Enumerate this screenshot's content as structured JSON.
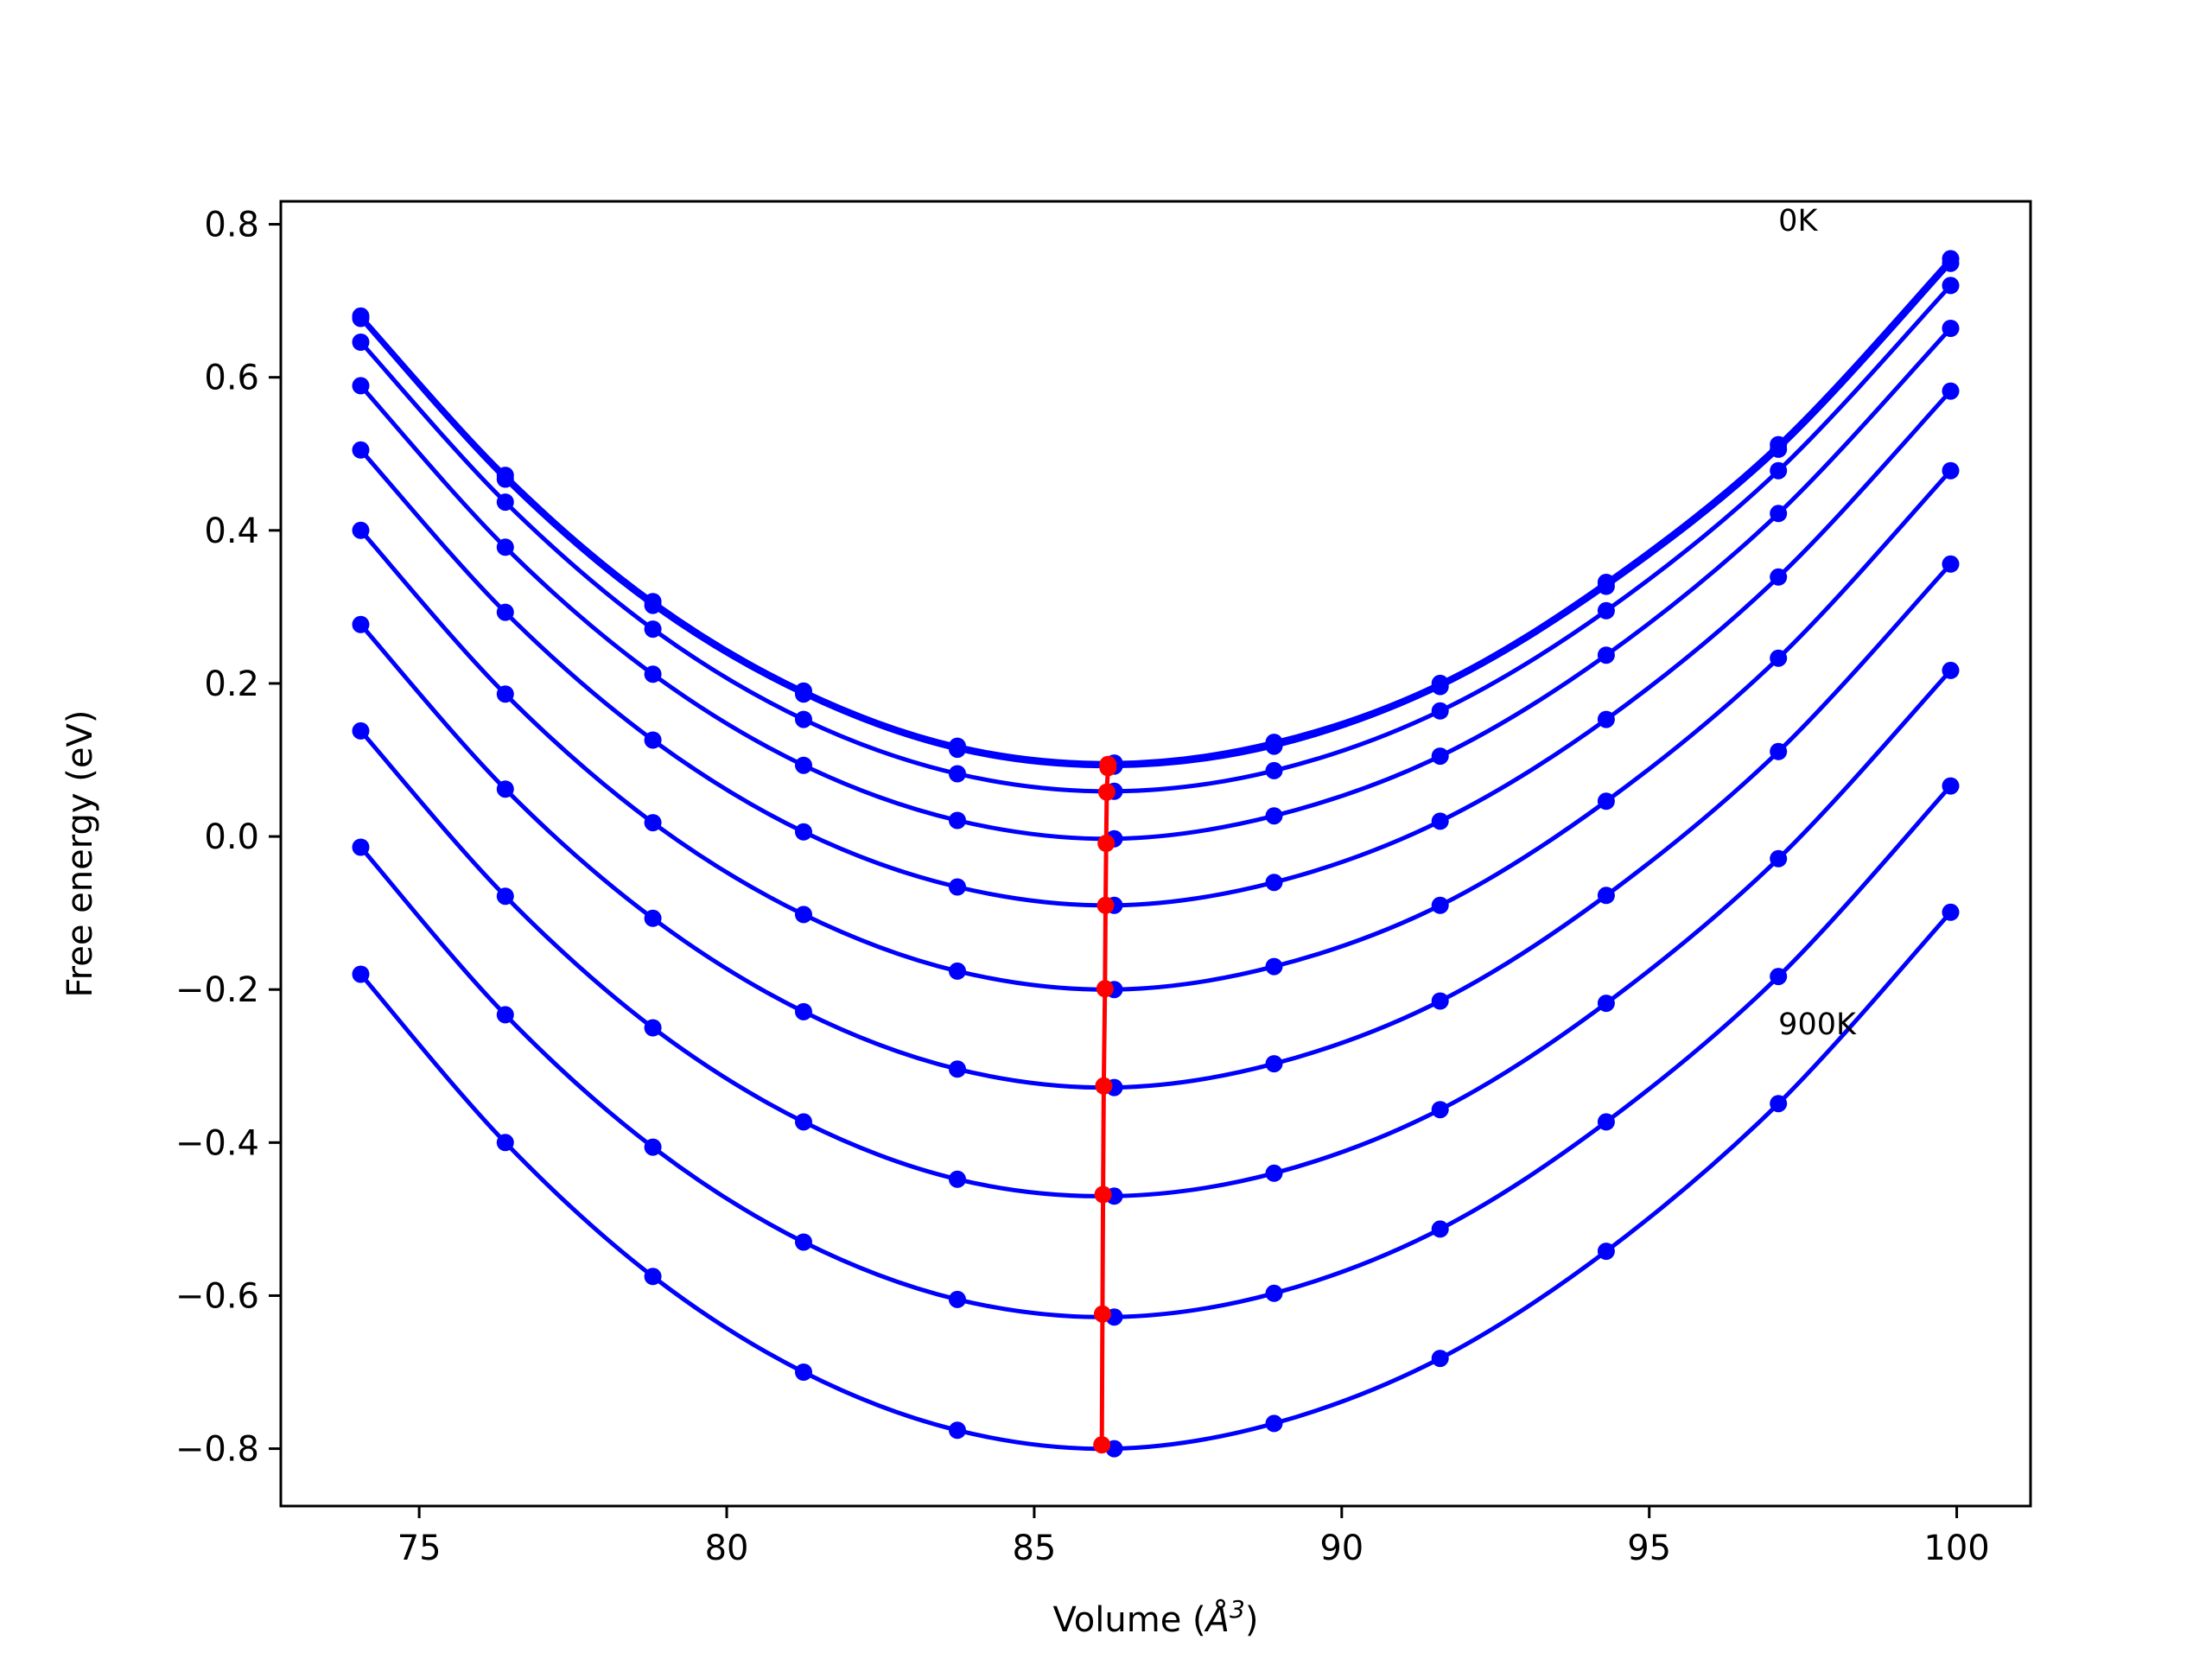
{
  "chart_data": {
    "type": "line",
    "title": "",
    "xlabel": "Volume (",
    "xlabel_unit": "Å",
    "xlabel_sup": "3",
    "xlabel_close": ")",
    "ylabel": "Free energy (eV)",
    "xlim": [
      72.75,
      101.2
    ],
    "ylim": [
      -0.875,
      0.83
    ],
    "x_ticks": [
      75,
      80,
      85,
      90,
      95,
      100
    ],
    "x_tick_labels": [
      "75",
      "80",
      "85",
      "90",
      "95",
      "100"
    ],
    "y_ticks": [
      0.8,
      0.6,
      0.4,
      0.2,
      0.0,
      -0.2,
      -0.4,
      -0.6,
      -0.8
    ],
    "y_tick_labels": [
      "0.8",
      "0.6",
      "0.4",
      "0.2",
      "0.0",
      "−0.2",
      "−0.4",
      "−0.6",
      "−0.8"
    ],
    "grid": false,
    "annotations": [
      {
        "text": "0K",
        "x": 97.1,
        "y": 0.805
      },
      {
        "text": "900K",
        "x": 97.1,
        "y": -0.245
      }
    ],
    "x": [
      74.05,
      76.4,
      78.8,
      81.25,
      83.75,
      86.3,
      88.9,
      91.6,
      94.3,
      97.1,
      99.9
    ],
    "series": [
      {
        "values": [
          0.68,
          0.472,
          0.307,
          0.19,
          0.118,
          0.096,
          0.123,
          0.2,
          0.332,
          0.512,
          0.755
        ]
      },
      {
        "values": [
          0.677,
          0.467,
          0.302,
          0.186,
          0.114,
          0.092,
          0.118,
          0.196,
          0.327,
          0.506,
          0.749
        ]
      },
      {
        "values": [
          0.646,
          0.437,
          0.271,
          0.153,
          0.082,
          0.059,
          0.086,
          0.164,
          0.295,
          0.478,
          0.72
        ]
      },
      {
        "values": [
          0.589,
          0.378,
          0.212,
          0.093,
          0.021,
          -0.003,
          0.027,
          0.105,
          0.237,
          0.422,
          0.664
        ]
      },
      {
        "values": [
          0.505,
          0.293,
          0.126,
          0.006,
          -0.066,
          -0.09,
          -0.06,
          0.02,
          0.153,
          0.339,
          0.582
        ]
      },
      {
        "values": [
          0.4,
          0.186,
          0.018,
          -0.102,
          -0.176,
          -0.2,
          -0.17,
          -0.09,
          0.046,
          0.233,
          0.478
        ]
      },
      {
        "values": [
          0.277,
          0.062,
          -0.107,
          -0.229,
          -0.304,
          -0.328,
          -0.297,
          -0.215,
          -0.077,
          0.111,
          0.356
        ]
      },
      {
        "values": [
          0.138,
          -0.078,
          -0.25,
          -0.373,
          -0.448,
          -0.47,
          -0.44,
          -0.357,
          -0.218,
          -0.029,
          0.217
        ]
      },
      {
        "values": [
          -0.014,
          -0.233,
          -0.406,
          -0.53,
          -0.605,
          -0.628,
          -0.597,
          -0.513,
          -0.373,
          -0.183,
          0.066
        ]
      },
      {
        "values": [
          -0.18,
          -0.4,
          -0.575,
          -0.7,
          -0.776,
          -0.8,
          -0.767,
          -0.682,
          -0.542,
          -0.349,
          -0.099
        ]
      }
    ],
    "minima": {
      "x": [
        86.2,
        86.2,
        86.18,
        86.17,
        86.16,
        86.15,
        86.13,
        86.12,
        86.11,
        86.1
      ],
      "y": [
        0.094,
        0.09,
        0.058,
        -0.009,
        -0.09,
        -0.199,
        -0.326,
        -0.468,
        -0.624,
        -0.795
      ]
    },
    "colors": {
      "series": "#0000ff",
      "minima": "#ff0000",
      "axes": "#000000"
    }
  }
}
